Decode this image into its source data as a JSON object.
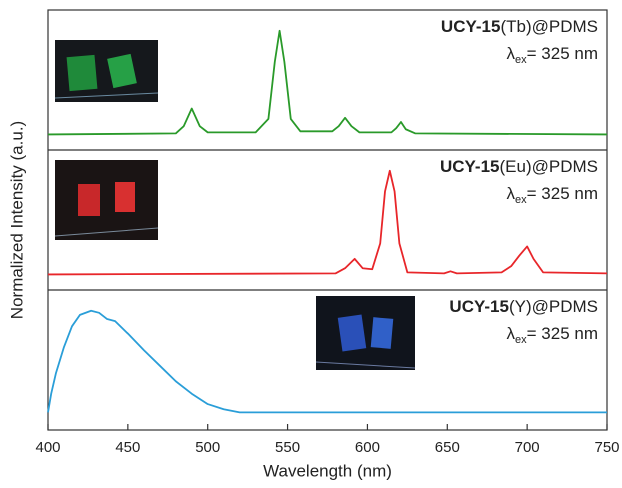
{
  "chart_data": [
    {
      "type": "line",
      "label_bold": "UCY-15",
      "label": "(Tb)@PDMS",
      "excitation": {
        "symbol": "λ",
        "sub": "ex",
        "text": "= 325 nm"
      },
      "color": "#2a9a2a",
      "xlim": [
        400,
        750
      ],
      "ylim": [
        -0.15,
        1.2
      ],
      "x": [
        400,
        480,
        485,
        490,
        495,
        500,
        530,
        538,
        542,
        545,
        548,
        552,
        558,
        578,
        582,
        586,
        590,
        595,
        615,
        618,
        621,
        624,
        630,
        750
      ],
      "values": [
        0,
        0.01,
        0.08,
        0.25,
        0.08,
        0.02,
        0.02,
        0.15,
        0.7,
        1.0,
        0.7,
        0.15,
        0.03,
        0.03,
        0.08,
        0.16,
        0.08,
        0.02,
        0.02,
        0.06,
        0.12,
        0.05,
        0.01,
        0
      ]
    },
    {
      "type": "line",
      "label_bold": "UCY-15",
      "label": "(Eu)@PDMS",
      "excitation": {
        "symbol": "λ",
        "sub": "ex",
        "text": "= 325 nm"
      },
      "ylabel": "Normalized Intensity (a.u.)",
      "color": "#e8262a",
      "xlim": [
        400,
        750
      ],
      "ylim": [
        -0.15,
        1.2
      ],
      "x": [
        400,
        580,
        586,
        592,
        597,
        603,
        608,
        611,
        614,
        617,
        620,
        625,
        648,
        652,
        656,
        684,
        690,
        695,
        700,
        704,
        710,
        750
      ],
      "values": [
        0,
        0.01,
        0.06,
        0.15,
        0.06,
        0.05,
        0.3,
        0.8,
        1.0,
        0.8,
        0.3,
        0.02,
        0.01,
        0.03,
        0.01,
        0.02,
        0.08,
        0.18,
        0.27,
        0.15,
        0.02,
        0.01
      ]
    },
    {
      "type": "line",
      "label_bold": "UCY-15",
      "label": "(Y)@PDMS",
      "excitation": {
        "symbol": "λ",
        "sub": "ex",
        "text": "= 325 nm"
      },
      "xlabel": "Wavelength (nm)",
      "color": "#2a9ed8",
      "xlim": [
        400,
        750
      ],
      "ylim": [
        -0.15,
        1.2
      ],
      "xticks": [
        400,
        450,
        500,
        550,
        600,
        650,
        700,
        750
      ],
      "x": [
        400,
        402,
        405,
        410,
        415,
        420,
        427,
        432,
        437,
        442,
        450,
        460,
        470,
        480,
        490,
        500,
        510,
        520,
        600,
        750
      ],
      "values": [
        0.02,
        0.2,
        0.4,
        0.65,
        0.85,
        0.96,
        1.0,
        0.98,
        0.92,
        0.9,
        0.78,
        0.62,
        0.47,
        0.32,
        0.2,
        0.1,
        0.05,
        0.02,
        0.02,
        0.02
      ]
    }
  ]
}
